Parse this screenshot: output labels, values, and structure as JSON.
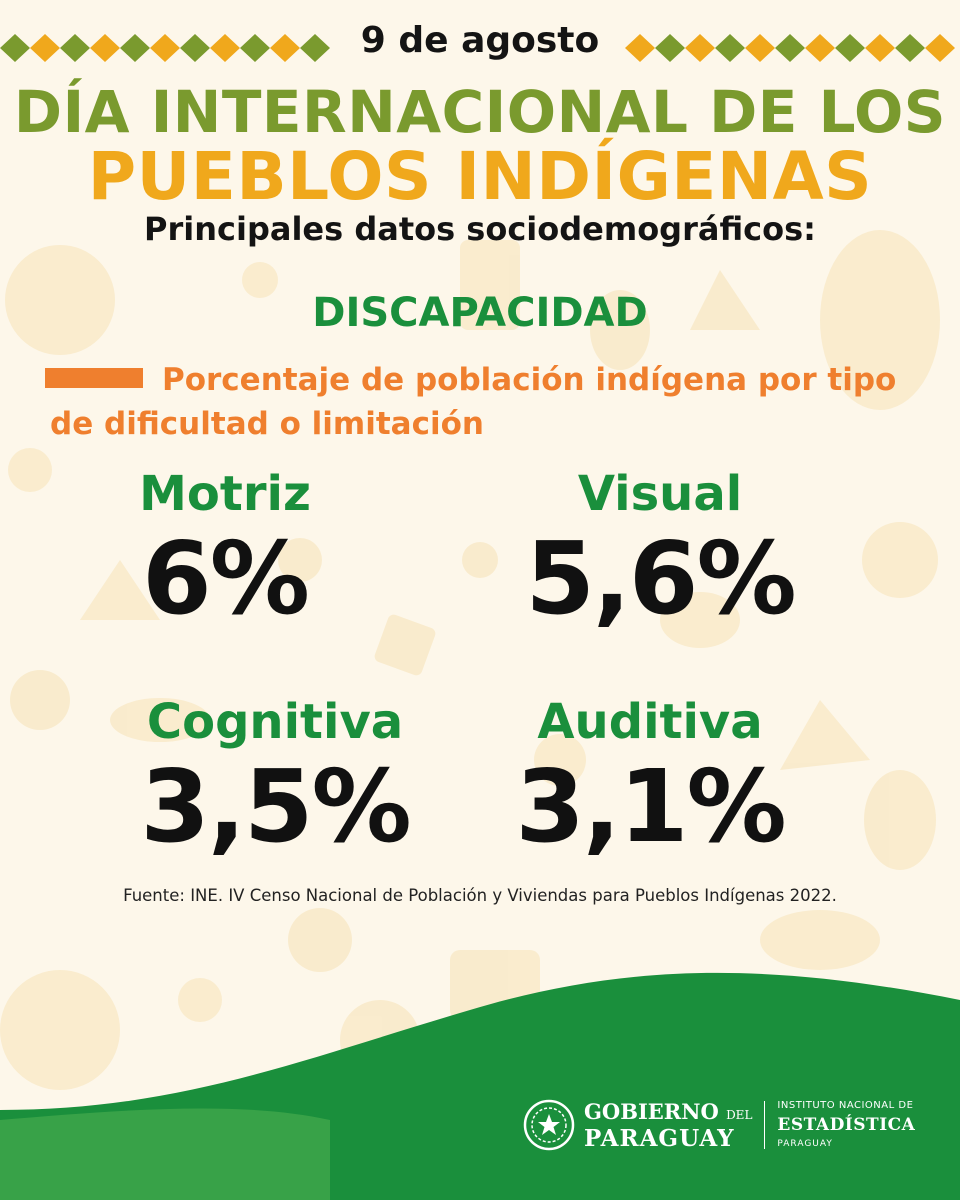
{
  "header": {
    "date": "9 de agosto",
    "title_line1": "DÍA INTERNACIONAL DE LOS",
    "title_line2": "PUEBLOS INDÍGENAS",
    "subtitle": "Principales datos sociodemográficos:"
  },
  "section": {
    "title": "DISCAPACIDAD",
    "legend": "Porcentaje de población indígena por tipo de dificultad o limitación"
  },
  "stats": [
    {
      "label": "Motriz",
      "value": "6%"
    },
    {
      "label": "Visual",
      "value": "5,6%"
    },
    {
      "label": "Cognitiva",
      "value": "3,5%"
    },
    {
      "label": "Auditiva",
      "value": "3,1%"
    }
  ],
  "source": "Fuente: INE. IV Censo Nacional de Población y Viviendas para Pueblos Indígenas 2022.",
  "footer": {
    "gov_line1": "GOBIERNO",
    "gov_del": "DEL",
    "gov_line2": "PARAGUAY",
    "ine_line1": "INSTITUTO NACIONAL DE",
    "ine_line2": "ESTADÍSTICA",
    "ine_line3": "PARAGUAY"
  },
  "colors": {
    "green": "#1a8f3c",
    "olive": "#7a9a2e",
    "yellow": "#f0a81c",
    "orange": "#ef7f2e",
    "cream": "#fdf7ea"
  }
}
